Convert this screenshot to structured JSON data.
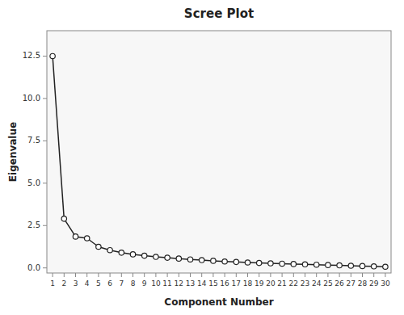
{
  "chart_data": {
    "type": "line",
    "title": "Scree Plot",
    "xlabel": "Component Number",
    "ylabel": "Eigenvalue",
    "x": [
      1,
      2,
      3,
      4,
      5,
      6,
      7,
      8,
      9,
      10,
      11,
      12,
      13,
      14,
      15,
      16,
      17,
      18,
      19,
      20,
      21,
      22,
      23,
      24,
      25,
      26,
      27,
      28,
      29,
      30
    ],
    "values": [
      12.5,
      2.9,
      1.85,
      1.75,
      1.25,
      1.05,
      0.9,
      0.8,
      0.72,
      0.65,
      0.6,
      0.55,
      0.5,
      0.46,
      0.42,
      0.38,
      0.35,
      0.32,
      0.29,
      0.27,
      0.25,
      0.23,
      0.21,
      0.19,
      0.17,
      0.15,
      0.13,
      0.11,
      0.09,
      0.07
    ],
    "color": "#222222",
    "marker": "circle",
    "xlim": [
      0.5,
      30.5
    ],
    "xticks": [
      1,
      2,
      3,
      4,
      5,
      6,
      7,
      8,
      9,
      10,
      11,
      12,
      13,
      14,
      15,
      16,
      17,
      18,
      19,
      20,
      21,
      22,
      23,
      24,
      25,
      26,
      27,
      28,
      29,
      30
    ],
    "ylim": [
      -0.3,
      14.0
    ],
    "yticks": [
      {
        "value": 0.0,
        "label": "0.0"
      },
      2.5,
      {
        "value": 5.0,
        "label": "5.0"
      },
      7.5,
      {
        "value": 10.0,
        "label": "10.0"
      },
      12.5
    ],
    "grid": false
  }
}
